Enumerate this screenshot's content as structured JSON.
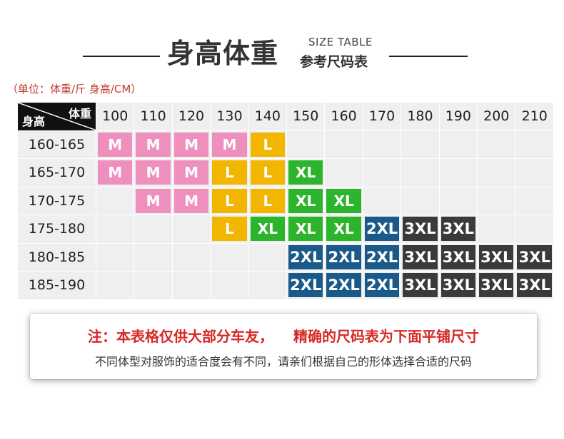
{
  "header": {
    "title": "身高体重",
    "subtitle_en": "SIZE TABLE",
    "subtitle_cn": "参考尺码表"
  },
  "unit_note": "（单位：体重/斤  身高/CM）",
  "table": {
    "corner_weight": "体重",
    "corner_height": "身高",
    "weights": [
      "100",
      "110",
      "120",
      "130",
      "140",
      "150",
      "160",
      "170",
      "180",
      "190",
      "200",
      "210"
    ],
    "rows": [
      {
        "height": "160-165",
        "cells": [
          "M",
          "M",
          "M",
          "M",
          "L",
          "",
          "",
          "",
          "",
          "",
          "",
          ""
        ]
      },
      {
        "height": "165-170",
        "cells": [
          "M",
          "M",
          "M",
          "L",
          "L",
          "XL",
          "",
          "",
          "",
          "",
          "",
          ""
        ]
      },
      {
        "height": "170-175",
        "cells": [
          "",
          "M",
          "M",
          "L",
          "L",
          "XL",
          "XL",
          "",
          "",
          "",
          "",
          ""
        ]
      },
      {
        "height": "175-180",
        "cells": [
          "",
          "",
          "",
          "L",
          "XL",
          "XL",
          "XL",
          "2XL",
          "3XL",
          "3XL",
          "",
          ""
        ]
      },
      {
        "height": "180-185",
        "cells": [
          "",
          "",
          "",
          "",
          "",
          "2XL",
          "2XL",
          "2XL",
          "3XL",
          "3XL",
          "3XL",
          "3XL"
        ]
      },
      {
        "height": "185-190",
        "cells": [
          "",
          "",
          "",
          "",
          "",
          "2XL",
          "2XL",
          "2XL",
          "3XL",
          "3XL",
          "3XL",
          "3XL"
        ]
      }
    ],
    "size_colors": {
      "M": "#ef8fbd",
      "L": "#f2b500",
      "XL": "#2cb52c",
      "2XL": "#1a5a8a",
      "3XL": "#3a3a3a"
    }
  },
  "notice": {
    "line1_a": "注：本表格仅供大部分车友，",
    "line1_b": "精确的尺码表为下面平铺尺寸",
    "line2": "不同体型对服饰的适合度会有不同，请亲们根据自己的形体选择合适的尺码"
  }
}
